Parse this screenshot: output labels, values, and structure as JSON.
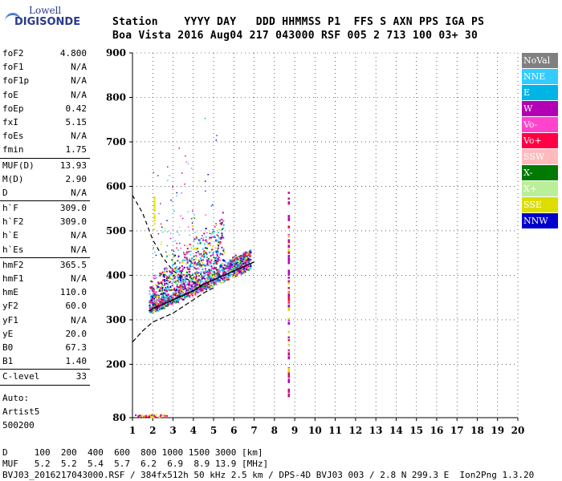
{
  "logo": {
    "brand": "Lowell",
    "product": "DIGISONDE"
  },
  "header": {
    "line1": "Station    YYYY DAY   DDD HHMMSS P1  FFS S AXN PPS IGA PS",
    "line2": "Boa Vista 2016 Aug04 217 043000 RSF 005 2 713 100 03+ 30"
  },
  "params_group1": [
    {
      "k": "foF2",
      "v": "4.800"
    },
    {
      "k": "foF1",
      "v": "N/A"
    },
    {
      "k": "foF1p",
      "v": "N/A"
    },
    {
      "k": "foE",
      "v": "N/A"
    },
    {
      "k": "foEp",
      "v": "0.42"
    },
    {
      "k": "fxI",
      "v": "5.15"
    },
    {
      "k": "foEs",
      "v": "N/A"
    },
    {
      "k": "fmin",
      "v": "1.75"
    }
  ],
  "params_group2": [
    {
      "k": "MUF(D)",
      "v": "13.93"
    },
    {
      "k": "M(D)",
      "v": "2.90"
    },
    {
      "k": "D",
      "v": "N/A"
    }
  ],
  "params_group3": [
    {
      "k": "h`F",
      "v": "309.0"
    },
    {
      "k": "h`F2",
      "v": "309.0"
    },
    {
      "k": "h`E",
      "v": "N/A"
    },
    {
      "k": "h`Es",
      "v": "N/A"
    }
  ],
  "params_group4": [
    {
      "k": "hmF2",
      "v": "365.5"
    },
    {
      "k": "hmF1",
      "v": "N/A"
    },
    {
      "k": "hmE",
      "v": "110.0"
    },
    {
      "k": "yF2",
      "v": "60.0"
    },
    {
      "k": "yF1",
      "v": "N/A"
    },
    {
      "k": "yE",
      "v": "20.0"
    },
    {
      "k": "B0",
      "v": "67.3"
    },
    {
      "k": "B1",
      "v": "1.40"
    }
  ],
  "params_group5": [
    {
      "k": "C-level",
      "v": "33"
    }
  ],
  "autoscale": {
    "line1": "Auto:",
    "line2": "Artist5",
    "line3": "500200"
  },
  "legend": [
    {
      "label": "NoVal",
      "bg": "#808080",
      "fg": "#ffffff"
    },
    {
      "label": "NNE",
      "bg": "#33ccff",
      "fg": "#ffffff"
    },
    {
      "label": "E",
      "bg": "#00b4e6",
      "fg": "#ffffff"
    },
    {
      "label": "W",
      "bg": "#b400b4",
      "fg": "#ffffff"
    },
    {
      "label": "Vo-",
      "bg": "#ff44cc",
      "fg": "#ffffff"
    },
    {
      "label": "Vo+",
      "bg": "#ff0044",
      "fg": "#ffffff"
    },
    {
      "label": "SSW",
      "bg": "#ffbbbb",
      "fg": "#ffffff"
    },
    {
      "label": "X-",
      "bg": "#007a00",
      "fg": "#ffffff"
    },
    {
      "label": "X+",
      "bg": "#bbee99",
      "fg": "#ffffff"
    },
    {
      "label": "SSE",
      "bg": "#dddd00",
      "fg": "#ffffff"
    },
    {
      "label": "NNW",
      "bg": "#0000cc",
      "fg": "#ffffff"
    }
  ],
  "bottom": {
    "d_row": "D     100  200  400  600  800 1000 1500 3000 [km]",
    "muf_row": "MUF   5.2  5.2  5.4  5.7  6.2  6.9  8.9 13.9 [MHz]",
    "footer": "BVJ03_2016217043000.RSF / 384fx512h 50 kHz 2.5 km / DPS-4D BVJ03 003 / 2.8 N 299.3 E  Ion2Png 1.3.20"
  },
  "chart_data": {
    "type": "scatter",
    "xlim": [
      1,
      20
    ],
    "ylim": [
      80,
      900
    ],
    "xticks": [
      1,
      2,
      3,
      4,
      5,
      6,
      7,
      8,
      9,
      10,
      11,
      12,
      13,
      14,
      15,
      16,
      17,
      18,
      19,
      20
    ],
    "yticks": [
      80,
      200,
      300,
      400,
      500,
      600,
      700,
      800,
      900
    ],
    "grid": true,
    "legend_position": "right",
    "main_trace_profile": [
      {
        "f": 1.8,
        "h": 320
      },
      {
        "f": 2.0,
        "h": 325
      },
      {
        "f": 2.5,
        "h": 335
      },
      {
        "f": 3.0,
        "h": 345
      },
      {
        "f": 3.5,
        "h": 355
      },
      {
        "f": 4.0,
        "h": 365
      },
      {
        "f": 4.5,
        "h": 380
      },
      {
        "f": 5.0,
        "h": 390
      },
      {
        "f": 5.5,
        "h": 400
      },
      {
        "f": 6.0,
        "h": 410
      },
      {
        "f": 6.5,
        "h": 420
      },
      {
        "f": 7.0,
        "h": 430
      }
    ],
    "dashed_curve": [
      {
        "f": 1.0,
        "h": 580
      },
      {
        "f": 1.5,
        "h": 540
      },
      {
        "f": 2.0,
        "h": 480
      },
      {
        "f": 2.5,
        "h": 440
      },
      {
        "f": 3.0,
        "h": 410
      },
      {
        "f": 3.5,
        "h": 395
      },
      {
        "f": 4.0,
        "h": 385
      },
      {
        "f": 4.5,
        "h": 375
      }
    ],
    "profile_curve": [
      {
        "f": 1.0,
        "h": 250
      },
      {
        "f": 1.5,
        "h": 275
      },
      {
        "f": 2.0,
        "h": 295
      },
      {
        "f": 2.5,
        "h": 305
      },
      {
        "f": 3.0,
        "h": 315
      },
      {
        "f": 3.5,
        "h": 330
      },
      {
        "f": 4.0,
        "h": 345
      },
      {
        "f": 4.5,
        "h": 360
      },
      {
        "f": 5.0,
        "h": 372
      }
    ]
  }
}
